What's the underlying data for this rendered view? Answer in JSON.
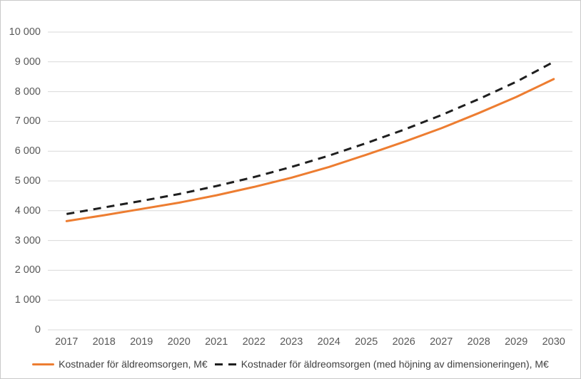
{
  "chart_data": {
    "type": "line",
    "title": "",
    "xlabel": "",
    "ylabel": "",
    "categories": [
      2017,
      2018,
      2019,
      2020,
      2021,
      2022,
      2023,
      2024,
      2025,
      2026,
      2027,
      2028,
      2029,
      2030
    ],
    "series": [
      {
        "name": "Kostnader för äldreomsorgen, M€",
        "color": "#ED7D31",
        "line_style": "solid",
        "values": [
          3650,
          3850,
          4060,
          4270,
          4520,
          4800,
          5110,
          5470,
          5880,
          6310,
          6770,
          7280,
          7820,
          8420
        ]
      },
      {
        "name": "Kostnader för äldreomsorgen (med höjning av dimensioneringen), M€",
        "color": "#1f1f1f",
        "line_style": "dashed",
        "values": [
          3890,
          4110,
          4330,
          4560,
          4830,
          5130,
          5470,
          5850,
          6270,
          6720,
          7210,
          7750,
          8330,
          9000
        ]
      }
    ],
    "ylim": [
      0,
      10000
    ],
    "y_tick_step": 1000,
    "y_tick_labels": [
      "0",
      "1 000",
      "2 000",
      "3 000",
      "4 000",
      "5 000",
      "6 000",
      "7 000",
      "8 000",
      "9 000",
      "10 000"
    ],
    "grid": "horizontal",
    "legend_position": "bottom"
  },
  "colors": {
    "gridline": "#D9D9D9",
    "axis_text": "#595959",
    "legend_text": "#404040",
    "frame_border": "#C9C9C9",
    "background": "#FFFFFF"
  }
}
